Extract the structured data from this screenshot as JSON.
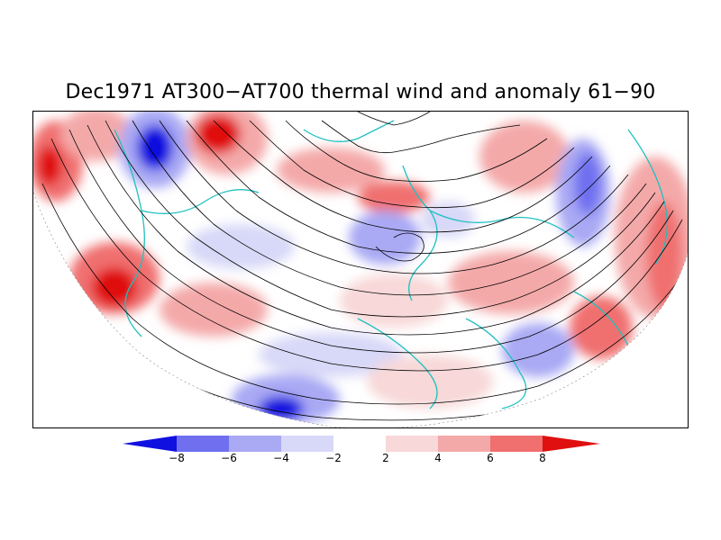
{
  "title": "Dec1971 AT300−AT700 thermal wind and anomaly 61−90",
  "colorbar": {
    "labels": [
      "−8",
      "−6",
      "−4",
      "−2",
      "2",
      "4",
      "6",
      "8"
    ],
    "colors": {
      "neg_4": "#1010e0",
      "neg_3": "#6f6ff0",
      "neg_2": "#a9a9f4",
      "neg_1": "#d8d8f8",
      "zero": "#ffffff",
      "pos_1": "#f8d8d8",
      "pos_2": "#f4a9a9",
      "pos_3": "#f06f6f",
      "pos_4": "#e01010"
    }
  },
  "map": {
    "projection": "polar-stereographic-northern-hemisphere",
    "coastline_color": "#20c0c0",
    "streamline_color": "#000000"
  }
}
